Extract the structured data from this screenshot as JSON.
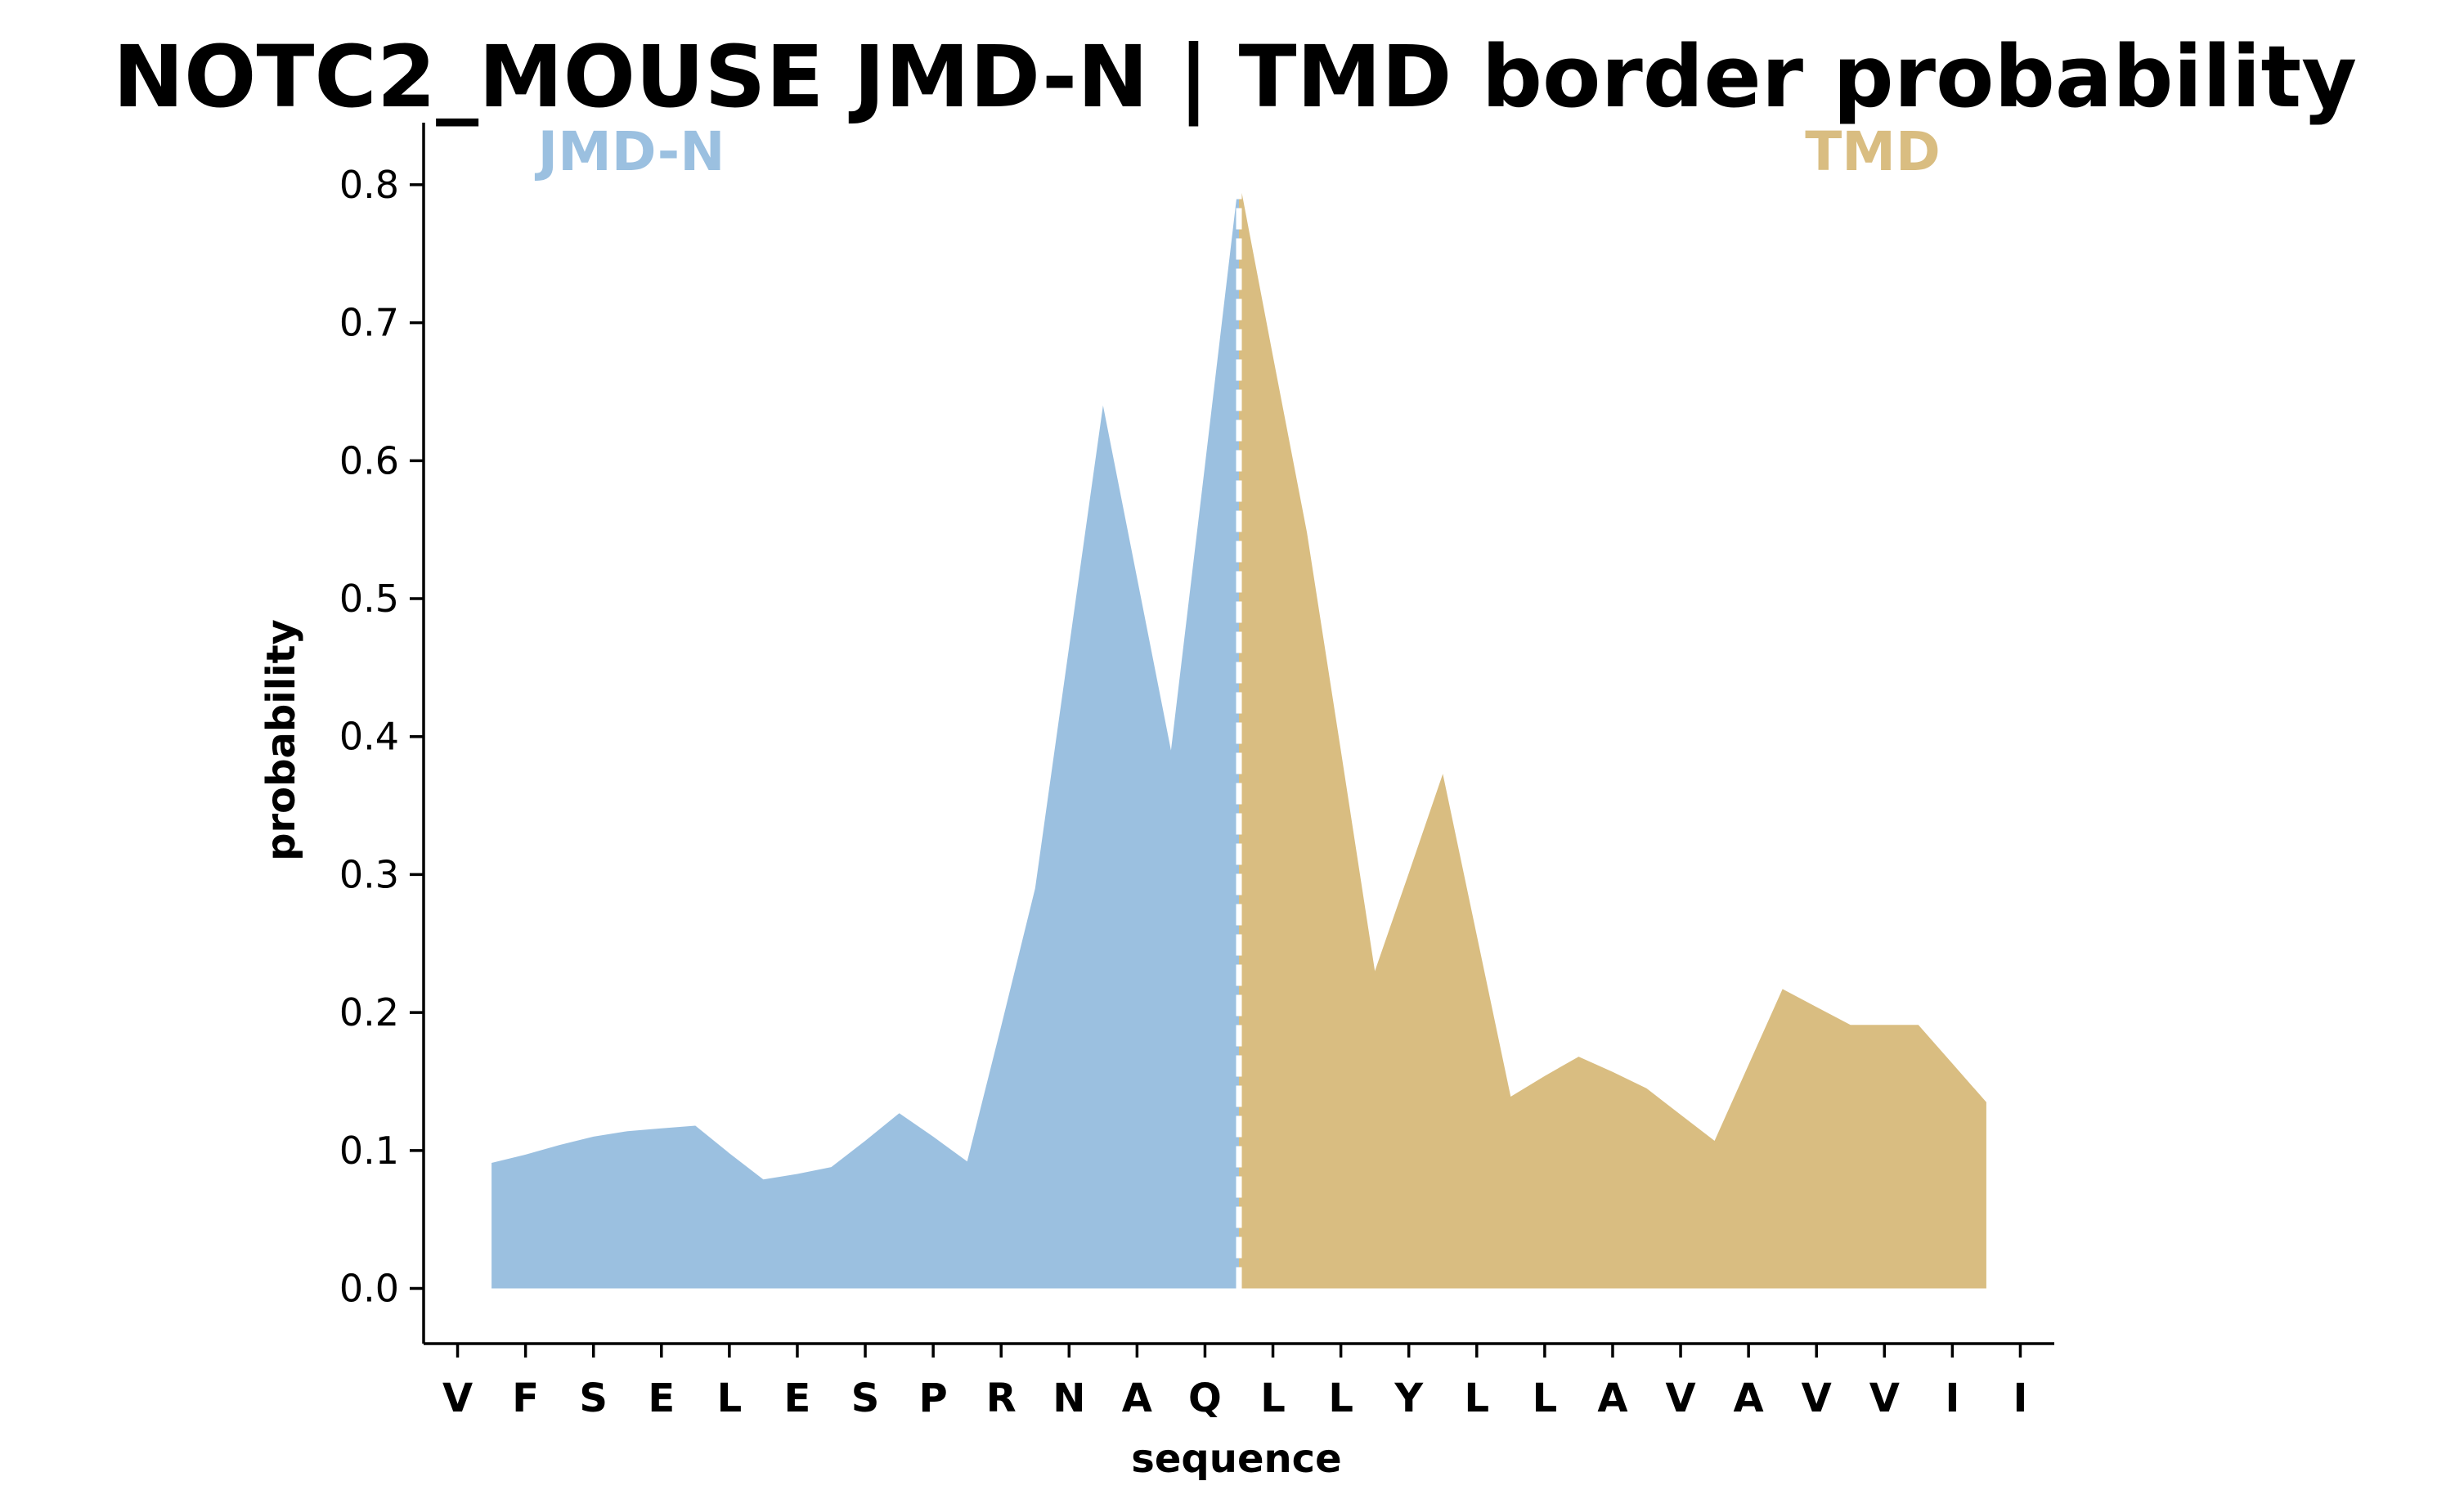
{
  "chart_data": {
    "type": "area",
    "title": "NOTC2_MOUSE JMD-N | TMD border probability",
    "xlabel": "sequence",
    "ylabel": "probability",
    "ylim": [
      -0.04,
      0.845
    ],
    "yticks": [
      "0.0",
      "0.1",
      "0.2",
      "0.3",
      "0.4",
      "0.5",
      "0.6",
      "0.7",
      "0.8"
    ],
    "categories": [
      "V",
      "F",
      "S",
      "E",
      "L",
      "E",
      "S",
      "P",
      "R",
      "N",
      "A",
      "Q",
      "L",
      "L",
      "Y",
      "L",
      "L",
      "A",
      "V",
      "A",
      "V",
      "V",
      "I",
      "I"
    ],
    "x": [
      0.5,
      1.0,
      1.5,
      2.0,
      2.5,
      3.0,
      3.5,
      4.0,
      4.5,
      5.0,
      5.5,
      6.0,
      6.5,
      7.0,
      7.5,
      8.0,
      8.5,
      9.0,
      9.5,
      10.0,
      10.5,
      11.0,
      11.5,
      12.0,
      12.5,
      13.0,
      13.5,
      14.0,
      14.5,
      15.0,
      15.5,
      16.0,
      16.5,
      17.0,
      17.5,
      18.0,
      18.5,
      19.0,
      19.5,
      20.0,
      20.5,
      21.0,
      21.5,
      22.0,
      22.5
    ],
    "y": [
      0.091,
      0.097,
      0.104,
      0.11,
      0.114,
      0.116,
      0.118,
      0.098,
      0.079,
      0.083,
      0.088,
      0.107,
      0.127,
      0.11,
      0.092,
      0.19,
      0.29,
      0.465,
      0.64,
      0.515,
      0.39,
      0.597,
      0.805,
      0.676,
      0.548,
      0.39,
      0.23,
      0.301,
      0.373,
      0.256,
      0.139,
      0.154,
      0.168,
      0.157,
      0.145,
      0.126,
      0.107,
      0.162,
      0.217,
      0.204,
      0.191,
      0.191,
      0.191,
      0.163,
      0.135
    ],
    "regions": [
      {
        "name": "JMD-N",
        "x_range": [
          0.5,
          11.5
        ],
        "color": "#9bc0e0"
      },
      {
        "name": "TMD",
        "x_range": [
          11.5,
          22.5
        ],
        "color": "#d9bd81"
      }
    ],
    "border_x": 11.5,
    "border_style": "white dashed vertical line",
    "grid": false,
    "spines": "left and bottom only"
  }
}
